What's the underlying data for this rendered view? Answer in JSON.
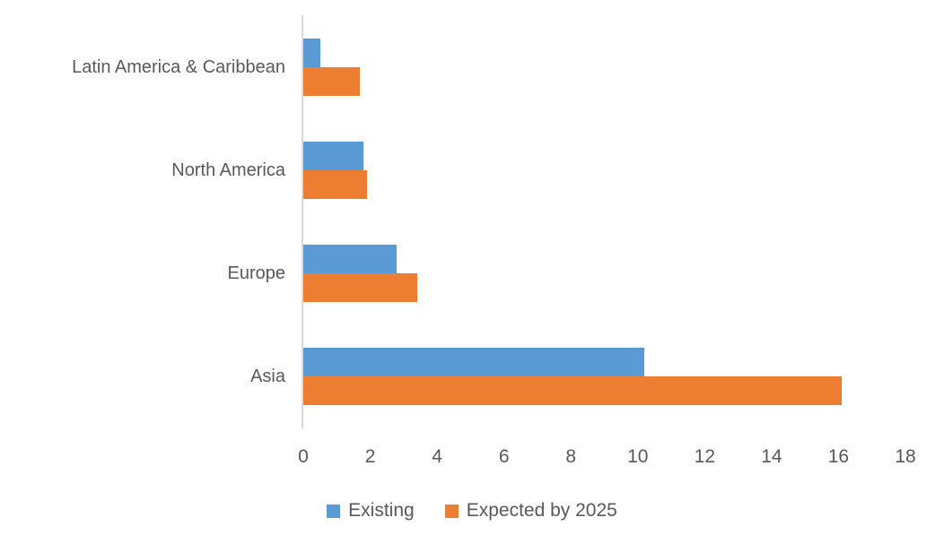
{
  "chart_data": {
    "type": "bar",
    "orientation": "horizontal",
    "title": "",
    "xlabel": "",
    "ylabel": "",
    "categories_top_to_bottom": [
      "Latin America & Caribbean",
      "North America",
      "Europe",
      "Asia"
    ],
    "series": [
      {
        "name": "Existing",
        "color": "#5B9BD5",
        "values": [
          0.5,
          1.8,
          2.8,
          10.2
        ]
      },
      {
        "name": "Expected by 2025",
        "color": "#ED7D31",
        "values": [
          1.7,
          1.9,
          3.4,
          16.1
        ]
      }
    ],
    "xlim": [
      0,
      18
    ],
    "x_ticks": [
      0,
      2,
      4,
      6,
      8,
      10,
      12,
      14,
      16,
      18
    ],
    "grid": false,
    "legend_position": "bottom",
    "bar_order_in_group_top_to_bottom": [
      "Existing",
      "Expected by 2025"
    ]
  },
  "colors": {
    "axis_line": "#D9D9D9",
    "text": "#595959",
    "background": "#FFFFFF",
    "series_existing": "#5B9BD5",
    "series_expected": "#ED7D31"
  }
}
